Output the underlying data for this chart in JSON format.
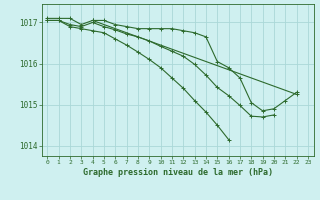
{
  "title": "Graphe pression niveau de la mer (hPa)",
  "background_color": "#cff0f0",
  "grid_color": "#aad8d8",
  "line_color": "#2d6a2d",
  "xlim": [
    -0.5,
    23.5
  ],
  "ylim": [
    1013.75,
    1017.45
  ],
  "xtick_labels": [
    "0",
    "1",
    "2",
    "3",
    "4",
    "5",
    "6",
    "7",
    "8",
    "9",
    "10",
    "11",
    "12",
    "13",
    "14",
    "15",
    "16",
    "17",
    "18",
    "19",
    "20",
    "21",
    "22",
    "23"
  ],
  "yticks": [
    1014,
    1015,
    1016,
    1017
  ],
  "series1_x": [
    0,
    1,
    2,
    3,
    4,
    5,
    6,
    7,
    8,
    9,
    10,
    11,
    12,
    13,
    14,
    15,
    16,
    17,
    18,
    19,
    20,
    21,
    22
  ],
  "series1_y": [
    1017.1,
    1017.1,
    1017.1,
    1016.95,
    1017.05,
    1017.05,
    1016.95,
    1016.9,
    1016.85,
    1016.85,
    1016.85,
    1016.85,
    1016.8,
    1016.75,
    1016.65,
    1016.05,
    1015.9,
    1015.65,
    1015.05,
    1014.85,
    1014.9,
    1015.1,
    1015.3
  ],
  "series2_x": [
    0,
    1,
    2,
    3,
    4,
    5,
    6,
    7,
    8,
    9,
    10,
    11,
    12,
    13,
    14,
    15,
    16,
    17,
    18,
    19,
    20
  ],
  "series2_y": [
    1017.05,
    1017.05,
    1016.95,
    1016.9,
    1017.0,
    1016.9,
    1016.82,
    1016.72,
    1016.65,
    1016.55,
    1016.42,
    1016.3,
    1016.18,
    1015.98,
    1015.72,
    1015.42,
    1015.22,
    1014.98,
    1014.72,
    1014.7,
    1014.75
  ],
  "series3_x": [
    0,
    1,
    2,
    3,
    4,
    5,
    6,
    7,
    8,
    9,
    10,
    11,
    12,
    13,
    14,
    15,
    16
  ],
  "series3_y": [
    1017.05,
    1017.05,
    1016.9,
    1016.85,
    1016.8,
    1016.75,
    1016.6,
    1016.45,
    1016.28,
    1016.1,
    1015.9,
    1015.65,
    1015.4,
    1015.1,
    1014.82,
    1014.5,
    1014.15
  ],
  "series4_x": [
    4,
    22
  ],
  "series4_y": [
    1017.05,
    1015.25
  ]
}
